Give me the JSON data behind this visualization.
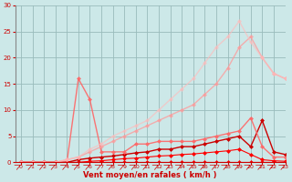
{
  "xlabel": "Vent moyen/en rafales ( km/h )",
  "bg_color": "#cce8e8",
  "grid_color": "#99bbbb",
  "x_ticks": [
    0,
    1,
    2,
    3,
    4,
    5,
    6,
    7,
    8,
    9,
    10,
    11,
    12,
    13,
    14,
    15,
    16,
    17,
    18,
    19,
    20,
    21,
    22,
    23
  ],
  "ylim": [
    0,
    30
  ],
  "xlim": [
    -0.5,
    23
  ],
  "yticks": [
    0,
    5,
    10,
    15,
    20,
    25,
    30
  ],
  "series": [
    {
      "x": [
        0,
        1,
        2,
        3,
        4,
        5,
        6,
        7,
        8,
        9,
        10,
        11,
        12,
        13,
        14,
        15,
        16,
        17,
        18,
        19,
        20,
        21,
        22,
        23
      ],
      "y": [
        0,
        0,
        0,
        0,
        0,
        0,
        0,
        0,
        0,
        0,
        0,
        0,
        0,
        0,
        0,
        0,
        0,
        0,
        0,
        0,
        0,
        0,
        0,
        0
      ],
      "color": "#ff0000",
      "alpha": 1.0,
      "lw": 0.8,
      "ms": 2.5
    },
    {
      "x": [
        0,
        1,
        2,
        3,
        4,
        5,
        6,
        7,
        8,
        9,
        10,
        11,
        12,
        13,
        14,
        15,
        16,
        17,
        18,
        19,
        20,
        21,
        22,
        23
      ],
      "y": [
        0,
        0,
        0,
        0,
        0,
        0,
        0.2,
        0.3,
        0.5,
        0.7,
        0.8,
        1,
        1.2,
        1.3,
        1.5,
        1.6,
        1.8,
        2,
        2.2,
        2.5,
        1.5,
        0.5,
        0.3,
        0.2
      ],
      "color": "#ff0000",
      "alpha": 1.0,
      "lw": 0.8,
      "ms": 2.5
    },
    {
      "x": [
        0,
        1,
        2,
        3,
        4,
        5,
        6,
        7,
        8,
        9,
        10,
        11,
        12,
        13,
        14,
        15,
        16,
        17,
        18,
        19,
        20,
        21,
        22,
        23
      ],
      "y": [
        0,
        0,
        0,
        0,
        0,
        0.5,
        0.8,
        1,
        1.2,
        1.5,
        1.8,
        2,
        2.5,
        2.5,
        3,
        3,
        3.5,
        4,
        4.5,
        5,
        3,
        8,
        2,
        1.5
      ],
      "color": "#cc0000",
      "alpha": 1.0,
      "lw": 1.0,
      "ms": 2.5
    },
    {
      "x": [
        0,
        1,
        2,
        3,
        4,
        5,
        6,
        7,
        8,
        9,
        10,
        11,
        12,
        13,
        14,
        15,
        16,
        17,
        18,
        19,
        20,
        21,
        22,
        23
      ],
      "y": [
        0,
        0,
        0,
        0,
        0,
        16,
        12,
        2,
        2,
        2,
        3.5,
        3.5,
        4,
        4,
        4,
        4,
        4.5,
        5,
        5.5,
        6,
        8.5,
        3,
        1,
        1
      ],
      "color": "#ff6666",
      "alpha": 0.9,
      "lw": 1.0,
      "ms": 2.5
    },
    {
      "x": [
        0,
        1,
        2,
        3,
        4,
        5,
        6,
        7,
        8,
        9,
        10,
        11,
        12,
        13,
        14,
        15,
        16,
        17,
        18,
        19,
        20,
        21,
        22,
        23
      ],
      "y": [
        0,
        0,
        0,
        0,
        0.5,
        1,
        2,
        3,
        4,
        5,
        6,
        7,
        8,
        9,
        10,
        11,
        13,
        15,
        18,
        22,
        24,
        20,
        17,
        16
      ],
      "color": "#ff9999",
      "alpha": 0.75,
      "lw": 1.0,
      "ms": 2.5
    },
    {
      "x": [
        0,
        1,
        2,
        3,
        4,
        5,
        6,
        7,
        8,
        9,
        10,
        11,
        12,
        13,
        14,
        15,
        16,
        17,
        18,
        19,
        20,
        21,
        22,
        23
      ],
      "y": [
        0,
        0,
        0,
        0,
        0.5,
        1,
        2.5,
        3.5,
        5,
        6,
        7,
        8,
        10,
        12,
        14,
        16,
        19,
        22,
        24,
        27,
        23,
        20,
        17,
        16
      ],
      "color": "#ffbbbb",
      "alpha": 0.65,
      "lw": 1.0,
      "ms": 2.5
    }
  ]
}
